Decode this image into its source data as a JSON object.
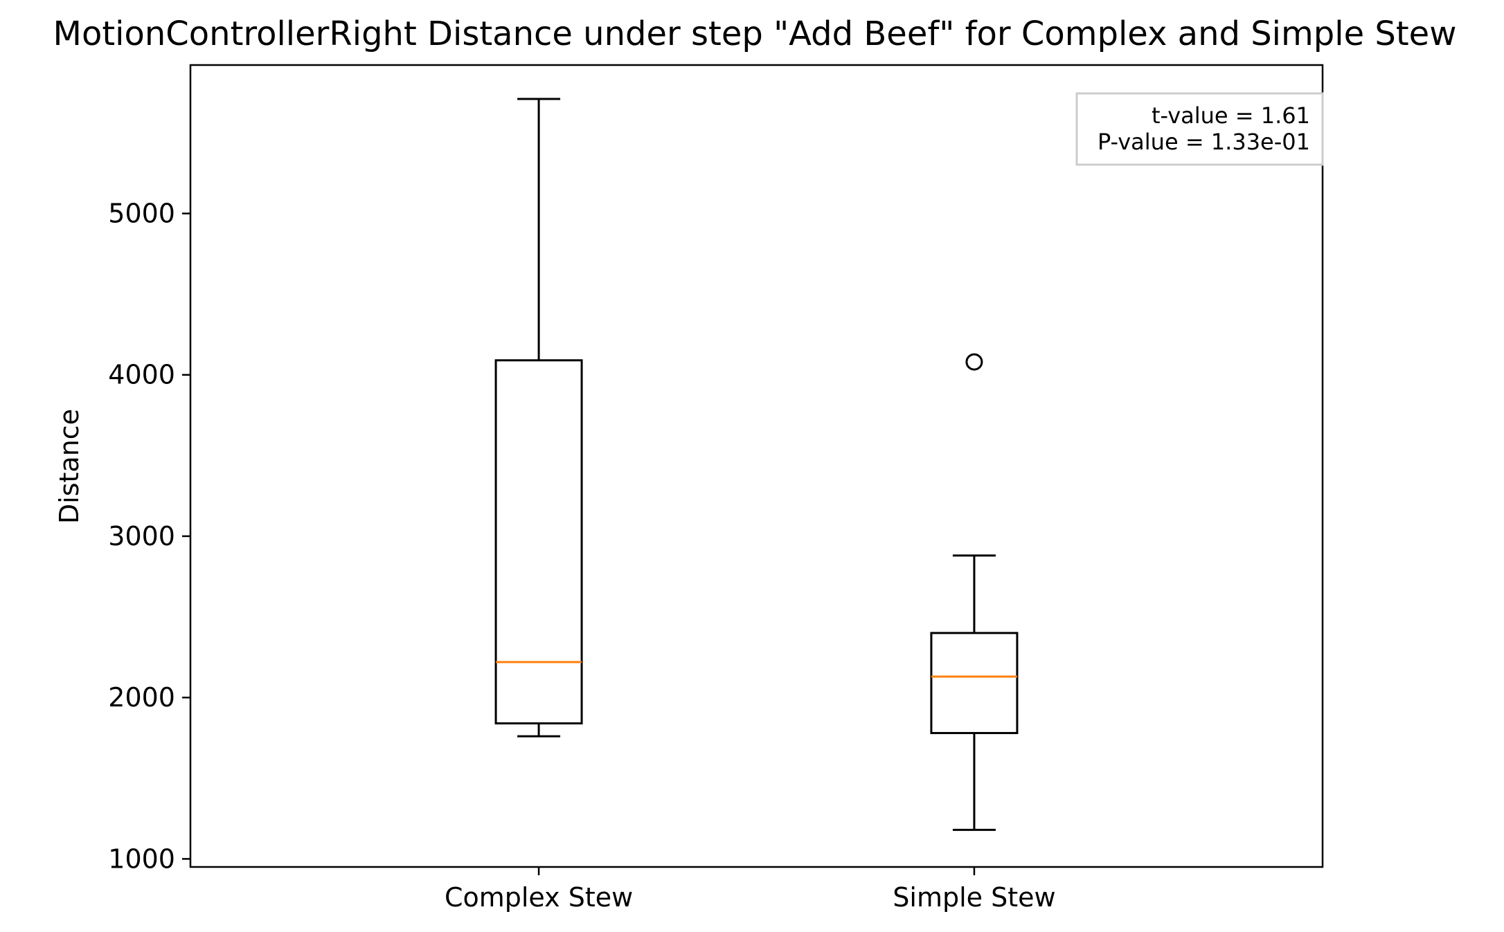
{
  "chart_data": {
    "type": "box",
    "title": "MotionControllerRight Distance under step \"Add Beef\" for Complex and Simple Stew",
    "xlabel": "",
    "ylabel": "Distance",
    "ylim": [
      950,
      5920
    ],
    "yticks": [
      1000,
      2000,
      3000,
      4000,
      5000
    ],
    "ytick_labels": [
      "1000",
      "2000",
      "3000",
      "4000",
      "5000"
    ],
    "categories": [
      "Complex Stew",
      "Simple Stew"
    ],
    "boxes": [
      {
        "category": "Complex Stew",
        "whisker_low": 1760,
        "q1": 1840,
        "median": 2220,
        "q3": 4090,
        "whisker_high": 5710,
        "outliers": []
      },
      {
        "category": "Simple Stew",
        "whisker_low": 1180,
        "q1": 1780,
        "median": 2130,
        "q3": 2400,
        "whisker_high": 2880,
        "outliers": [
          4080
        ]
      }
    ],
    "annotation": {
      "lines": [
        "t-value = 1.61",
        "P-value = 1.33e-01"
      ],
      "placement": "top-right"
    },
    "colors": {
      "box_edge": "#000000",
      "median": "#ff7f0e",
      "annotation_border": "#cccccc",
      "background": "#ffffff"
    },
    "grid": false
  }
}
